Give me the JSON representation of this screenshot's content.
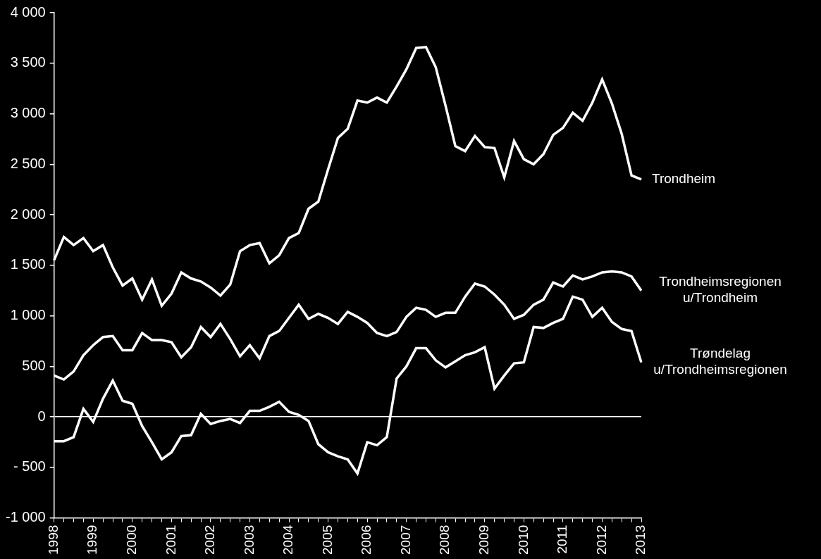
{
  "chart_data": {
    "type": "line",
    "categories": [
      "1998",
      null,
      null,
      null,
      "1999",
      null,
      null,
      null,
      "2000",
      null,
      null,
      null,
      "2001",
      null,
      null,
      null,
      "2002",
      null,
      null,
      null,
      "2003",
      null,
      null,
      null,
      "2004",
      null,
      null,
      null,
      "2005",
      null,
      null,
      null,
      "2006",
      null,
      null,
      null,
      "2007",
      null,
      null,
      null,
      "2008",
      null,
      null,
      null,
      "2009",
      null,
      null,
      null,
      "2010",
      null,
      null,
      null,
      "2011",
      null,
      null,
      null,
      "2012",
      null,
      null,
      null,
      "2013"
    ],
    "series": [
      {
        "name": "Trondheim",
        "color": "#ffffff",
        "values": [
          1550,
          1780,
          1700,
          1770,
          1640,
          1700,
          1480,
          1300,
          1370,
          1160,
          1360,
          1100,
          1220,
          1430,
          1370,
          1340,
          1280,
          1200,
          1310,
          1640,
          1700,
          1720,
          1520,
          1600,
          1770,
          1820,
          2060,
          2130,
          2450,
          2760,
          2850,
          3130,
          3110,
          3160,
          3110,
          3270,
          3440,
          3650,
          3660,
          3460,
          3080,
          2680,
          2630,
          2780,
          2670,
          2660,
          2370,
          2730,
          2550,
          2500,
          2600,
          2790,
          2860,
          3010,
          2930,
          3110,
          3340,
          3100,
          2800,
          2390,
          2350
        ]
      },
      {
        "name": "Trondheimsregionen\nu/Trondheim",
        "color": "#ffffff",
        "values": [
          410,
          370,
          450,
          610,
          710,
          790,
          800,
          660,
          660,
          830,
          760,
          760,
          740,
          590,
          690,
          890,
          790,
          920,
          770,
          600,
          710,
          580,
          800,
          850,
          980,
          1110,
          970,
          1020,
          980,
          920,
          1040,
          990,
          930,
          830,
          800,
          840,
          990,
          1080,
          1060,
          990,
          1030,
          1030,
          1190,
          1320,
          1290,
          1210,
          1110,
          970,
          1010,
          1110,
          1160,
          1330,
          1290,
          1400,
          1360,
          1390,
          1430,
          1440,
          1430,
          1390,
          1250
        ]
      },
      {
        "name": "Trøndelag\nu/Trondheimsregionen",
        "color": "#ffffff",
        "values": [
          -240,
          -240,
          -200,
          80,
          -50,
          180,
          360,
          160,
          130,
          -90,
          -250,
          -420,
          -350,
          -190,
          -180,
          30,
          -70,
          -40,
          -20,
          -60,
          60,
          60,
          100,
          150,
          50,
          20,
          -40,
          -270,
          -350,
          -390,
          -420,
          -560,
          -250,
          -280,
          -200,
          380,
          500,
          680,
          680,
          560,
          490,
          550,
          610,
          640,
          690,
          280,
          410,
          530,
          540,
          890,
          880,
          930,
          970,
          1190,
          1160,
          990,
          1080,
          940,
          870,
          850,
          540
        ]
      }
    ],
    "ylim": [
      -1000,
      4000
    ],
    "yticks": [
      {
        "value": -1000,
        "label": "-1 000"
      },
      {
        "value": -500,
        "label": "- 500"
      },
      0,
      500,
      {
        "value": 1000,
        "label": "1 000"
      },
      {
        "value": 1500,
        "label": "1 500"
      },
      {
        "value": 2000,
        "label": "2 000"
      },
      {
        "value": 2500,
        "label": "2 500"
      },
      {
        "value": 3000,
        "label": "3 000"
      },
      {
        "value": 3500,
        "label": "3 500"
      },
      {
        "value": 4000,
        "label": "4 000"
      }
    ],
    "grid": false
  }
}
